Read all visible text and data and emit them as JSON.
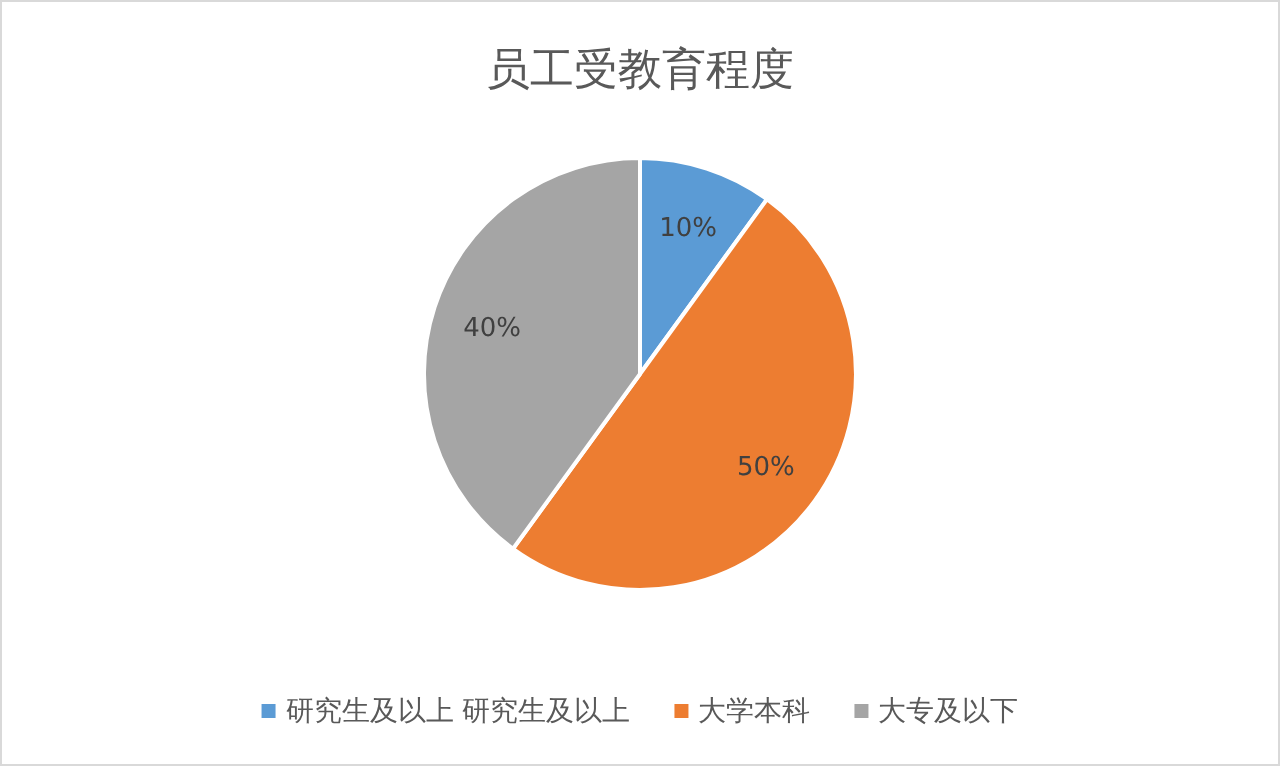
{
  "chart_data": {
    "type": "pie",
    "title": "员工受教育程度",
    "categories": [
      "研究生及以上 研究生及以上",
      "大学本科",
      "大专及以下"
    ],
    "values": [
      10,
      50,
      40
    ],
    "colors": [
      "#5b9bd5",
      "#ed7d31",
      "#a5a5a5"
    ],
    "value_labels": [
      "10%",
      "50%",
      "40%"
    ],
    "legend": "bottom"
  }
}
